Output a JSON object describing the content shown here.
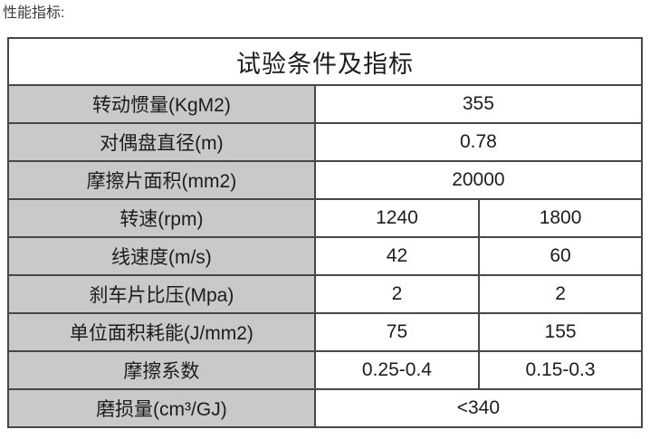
{
  "page": {
    "heading": "性能指标:"
  },
  "table": {
    "title": "试验条件及指标",
    "rows": [
      {
        "label": "转动惯量(KgM2)",
        "values": [
          "355"
        ],
        "span": 2
      },
      {
        "label": "对偶盘直径(m)",
        "values": [
          "0.78"
        ],
        "span": 2
      },
      {
        "label": "摩擦片面积(mm2)",
        "values": [
          "20000"
        ],
        "span": 2
      },
      {
        "label": "转速(rpm)",
        "values": [
          "1240",
          "1800"
        ],
        "span": 1
      },
      {
        "label": "线速度(m/s)",
        "values": [
          "42",
          "60"
        ],
        "span": 1
      },
      {
        "label": "刹车片比压(Mpa)",
        "values": [
          "2",
          "2"
        ],
        "span": 1
      },
      {
        "label": "单位面积耗能(J/mm2)",
        "values": [
          "75",
          "155"
        ],
        "span": 1
      },
      {
        "label": "摩擦系数",
        "values": [
          "0.25-0.4",
          "0.15-0.3"
        ],
        "span": 1
      },
      {
        "label": "磨损量(cm³/GJ)",
        "values": [
          "<340"
        ],
        "span": 2
      }
    ],
    "colors": {
      "label_bg": "#c9c9c9",
      "border": "#474747",
      "text": "#1c1c1c",
      "heading_text": "#3a3a3a"
    }
  }
}
